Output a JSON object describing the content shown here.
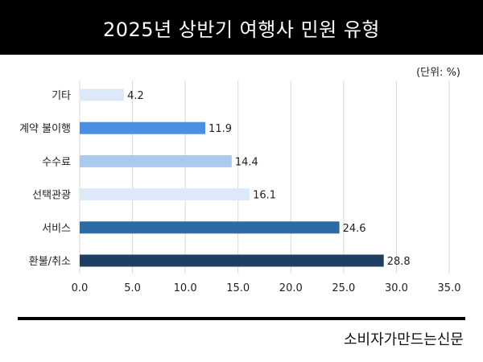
{
  "header": {
    "title": "2025년 상반기 여행사 민원 유형"
  },
  "unit_label": "(단위: %)",
  "source": "소비자가만드는신문",
  "chart_data": {
    "type": "bar",
    "orientation": "horizontal",
    "title": "2025년 상반기 여행사 민원 유형",
    "categories": [
      "기타",
      "계약 불이행",
      "수수료",
      "선택관광",
      "서비스",
      "환불/취소"
    ],
    "values": [
      4.2,
      11.9,
      14.4,
      16.1,
      24.6,
      28.8
    ],
    "value_labels": [
      "4.2",
      "11.9",
      "14.4",
      "16.1",
      "24.6",
      "28.8"
    ],
    "colors": [
      "#dce9f8",
      "#4a90e2",
      "#a9cbee",
      "#dce9f8",
      "#2d6aa8",
      "#1f3e63"
    ],
    "xlim": [
      0,
      35
    ],
    "xticks": [
      0,
      5,
      10,
      15,
      20,
      25,
      30,
      35
    ],
    "xtick_labels": [
      "0.0",
      "5.0",
      "10.0",
      "15.0",
      "20.0",
      "25.0",
      "30.0",
      "35.0"
    ],
    "grid": true
  }
}
